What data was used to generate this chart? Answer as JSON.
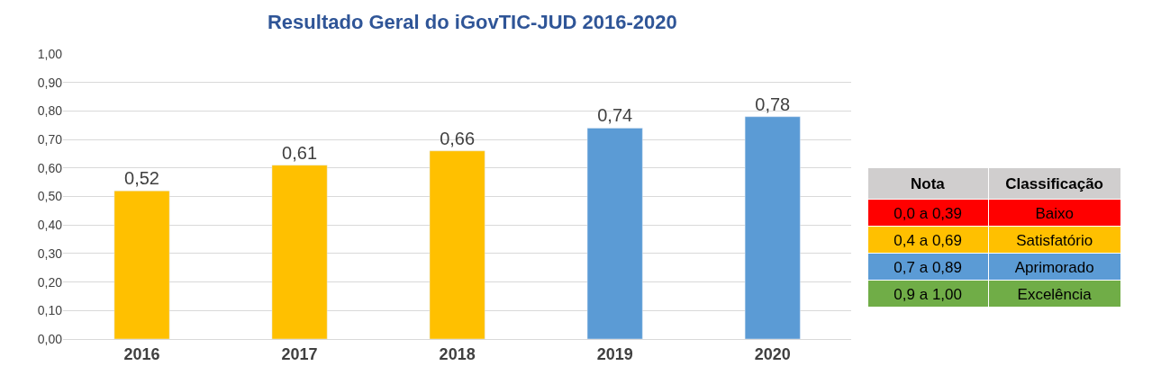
{
  "chart_data": [
    {
      "type": "bar",
      "title": "Resultado Geral do iGovTIC-JUD 2016-2020",
      "categories": [
        "2016",
        "2017",
        "2018",
        "2019",
        "2020"
      ],
      "values": [
        0.52,
        0.61,
        0.66,
        0.74,
        0.78
      ],
      "colors": [
        "#ffc000",
        "#ffc000",
        "#ffc000",
        "#5b9bd5",
        "#5b9bd5"
      ],
      "value_labels": [
        "0,52",
        "0,61",
        "0,66",
        "0,74",
        "0,78"
      ],
      "ylim": [
        0,
        1
      ],
      "yticks": [
        {
          "value": 0,
          "label": "0,00"
        },
        {
          "value": 0.1,
          "label": "0,10"
        },
        {
          "value": 0.2,
          "label": "0,20"
        },
        {
          "value": 0.3,
          "label": "0,30"
        },
        {
          "value": 0.4,
          "label": "0,40"
        },
        {
          "value": 0.5,
          "label": "0,50"
        },
        {
          "value": 0.6,
          "label": "0,60"
        },
        {
          "value": 0.7,
          "label": "0,70"
        },
        {
          "value": 0.8,
          "label": "0,80"
        },
        {
          "value": 0.9,
          "label": "0,90"
        },
        {
          "value": 1,
          "label": "1,00"
        }
      ],
      "grid": "y",
      "legend": false
    },
    {
      "type": "other",
      "annotations": [
        "Nota",
        "Classificação",
        "0,0 a 0,39",
        "Baixo",
        "0,4 a 0,69",
        "Satisfatório",
        "0,7 a 0,89",
        "Aprimorado",
        "0,9 a 1,00",
        "Excelência"
      ],
      "colors": [
        "#d0cece",
        "#ff0000",
        "#ffc000",
        "#5b9bd5",
        "#70ad47"
      ]
    }
  ]
}
